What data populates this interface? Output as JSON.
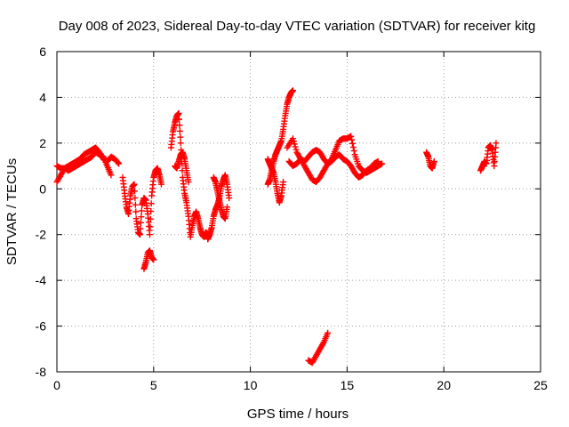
{
  "chart_data": {
    "type": "scatter",
    "title": "Day 008 of 2023, Sidereal Day-to-day VTEC variation (SDTVAR) for receiver kitg",
    "xlabel": "GPS time / hours",
    "ylabel": "SDTVAR / TECUs",
    "xlim": [
      0,
      25
    ],
    "ylim": [
      -8,
      6
    ],
    "xticks": [
      0,
      5,
      10,
      15,
      20,
      25
    ],
    "xtick_labels": [
      "0",
      "5",
      "10",
      "15",
      "20",
      "25"
    ],
    "yticks": [
      -8,
      -6,
      -4,
      -2,
      0,
      2,
      4,
      6
    ],
    "ytick_labels": [
      "-8",
      "-6",
      "-4",
      "-2",
      "0",
      "2",
      "4",
      "6"
    ],
    "grid": true,
    "marker": "+",
    "color": "#ff0000",
    "series": [
      {
        "name": "s1",
        "x": [
          0.0,
          0.2,
          0.4,
          0.6,
          0.8,
          1.0,
          1.2,
          1.4,
          1.6,
          1.8,
          2.0,
          2.2,
          2.4,
          2.6,
          2.8,
          3.0,
          3.2
        ],
        "y": [
          0.3,
          0.6,
          0.9,
          1.0,
          1.1,
          1.2,
          1.3,
          1.5,
          1.6,
          1.7,
          1.8,
          1.6,
          1.3,
          1.2,
          1.4,
          1.3,
          1.1
        ]
      },
      {
        "name": "s2",
        "x": [
          0.0,
          0.2,
          0.4,
          0.6,
          0.8,
          1.0,
          1.2,
          1.4,
          1.6,
          1.8,
          2.0,
          2.2,
          2.4,
          2.6,
          2.8
        ],
        "y": [
          1.0,
          0.9,
          0.9,
          0.8,
          0.9,
          1.0,
          1.1,
          1.2,
          1.3,
          1.4,
          1.6,
          1.5,
          1.4,
          1.0,
          0.6
        ]
      },
      {
        "name": "s3",
        "x": [
          3.4,
          3.5,
          3.6,
          3.7,
          3.8,
          3.9,
          4.0,
          4.1,
          4.2,
          4.3,
          4.4,
          4.5,
          4.6,
          4.7,
          4.8,
          4.9,
          5.0,
          5.1,
          5.2,
          5.3,
          5.4
        ],
        "y": [
          0.5,
          -0.2,
          -0.8,
          -1.1,
          -0.3,
          0.1,
          0.2,
          -1.3,
          -1.9,
          -2.0,
          -0.7,
          -0.4,
          -0.5,
          -1.1,
          -2.0,
          -0.3,
          0.5,
          0.8,
          0.9,
          0.6,
          0.2
        ]
      },
      {
        "name": "s4",
        "x": [
          4.5,
          4.6,
          4.7,
          4.8,
          4.9,
          5.0
        ],
        "y": [
          -3.5,
          -3.2,
          -2.8,
          -2.7,
          -3.0,
          -3.1
        ]
      },
      {
        "name": "s5",
        "x": [
          5.9,
          6.0,
          6.1,
          6.2,
          6.3,
          6.4,
          6.5,
          6.6,
          6.7,
          6.8,
          6.9,
          7.0,
          7.1,
          7.2,
          7.3,
          7.4,
          7.5,
          7.6,
          7.7,
          7.8
        ],
        "y": [
          1.8,
          2.5,
          2.9,
          3.2,
          3.3,
          2.0,
          0.5,
          -0.2,
          -0.6,
          -1.2,
          -2.1,
          -1.6,
          -1.2,
          -1.0,
          -1.3,
          -1.7,
          -2.0,
          -2.1,
          -1.9,
          -2.0
        ]
      },
      {
        "name": "s6",
        "x": [
          6.1,
          6.2,
          6.3,
          6.4,
          6.5,
          6.6,
          6.7,
          6.8
        ],
        "y": [
          1.0,
          0.9,
          1.2,
          1.5,
          1.6,
          1.3,
          0.8,
          0.3
        ]
      },
      {
        "name": "s7",
        "x": [
          7.8,
          7.9,
          8.0,
          8.1,
          8.2,
          8.3,
          8.4,
          8.5,
          8.6,
          8.7,
          8.8,
          8.9
        ],
        "y": [
          -2.2,
          -2.0,
          -1.7,
          -1.2,
          -0.9,
          -0.7,
          -0.4,
          0.1,
          0.4,
          0.6,
          0.2,
          -0.4
        ]
      },
      {
        "name": "s8",
        "x": [
          8.1,
          8.2,
          8.3,
          8.4,
          8.5,
          8.6,
          8.7,
          8.8
        ],
        "y": [
          0.5,
          0.3,
          -0.1,
          -0.5,
          -0.9,
          -1.2,
          -1.3,
          -0.8
        ]
      },
      {
        "name": "s9",
        "x": [
          10.9,
          11.0,
          11.1,
          11.2,
          11.3,
          11.4,
          11.5,
          11.6,
          11.7,
          11.8,
          11.9,
          12.0,
          12.1,
          12.2
        ],
        "y": [
          0.2,
          0.4,
          0.8,
          1.2,
          1.5,
          1.7,
          1.9,
          2.1,
          2.6,
          3.2,
          3.7,
          4.0,
          4.2,
          4.3
        ]
      },
      {
        "name": "s10",
        "x": [
          10.9,
          11.0,
          11.1,
          11.2,
          11.3,
          11.4,
          11.5,
          11.6,
          11.7
        ],
        "y": [
          1.3,
          1.1,
          0.9,
          0.7,
          0.3,
          -0.2,
          -0.6,
          -0.3,
          0.3
        ]
      },
      {
        "name": "s11",
        "x": [
          11.9,
          12.2,
          12.4,
          12.6,
          12.8,
          13.0,
          13.2,
          13.4,
          13.6,
          13.8,
          14.0,
          14.2,
          14.4,
          14.6,
          14.8,
          15.0,
          15.2,
          15.4,
          15.6,
          15.8,
          16.0,
          16.2,
          16.4,
          16.6,
          16.8
        ],
        "y": [
          1.8,
          2.2,
          1.6,
          1.3,
          1.0,
          0.7,
          0.4,
          0.3,
          0.5,
          0.8,
          1.1,
          1.3,
          1.7,
          2.1,
          2.2,
          2.2,
          2.3,
          1.5,
          1.0,
          0.8,
          0.7,
          0.8,
          0.9,
          1.0,
          1.1
        ]
      },
      {
        "name": "s12",
        "x": [
          12.0,
          12.2,
          12.4,
          12.6,
          12.8,
          13.0,
          13.2,
          13.4,
          13.6,
          13.8,
          14.0,
          14.2,
          14.4,
          14.6,
          14.8,
          15.0,
          15.2,
          15.4,
          15.6,
          15.8,
          16.0,
          16.2,
          16.4,
          16.6
        ],
        "y": [
          1.2,
          1.0,
          1.1,
          1.3,
          1.2,
          1.4,
          1.6,
          1.7,
          1.6,
          1.3,
          1.1,
          1.2,
          1.4,
          1.5,
          1.3,
          1.2,
          1.0,
          0.7,
          0.5,
          0.6,
          0.8,
          0.9,
          1.1,
          1.2
        ]
      },
      {
        "name": "s13",
        "x": [
          13.0,
          13.2,
          13.4,
          13.6,
          13.8,
          14.0
        ],
        "y": [
          -7.5,
          -7.6,
          -7.3,
          -7.0,
          -6.7,
          -6.3
        ]
      },
      {
        "name": "s14",
        "x": [
          19.1,
          19.2,
          19.3,
          19.4,
          19.5
        ],
        "y": [
          1.6,
          1.4,
          1.0,
          0.9,
          1.2
        ]
      },
      {
        "name": "s15",
        "x": [
          21.9,
          22.0,
          22.1,
          22.2,
          22.3,
          22.4,
          22.5,
          22.6,
          22.7
        ],
        "y": [
          0.8,
          1.0,
          1.2,
          1.1,
          1.8,
          1.9,
          1.7,
          1.0,
          2.0
        ]
      }
    ]
  }
}
